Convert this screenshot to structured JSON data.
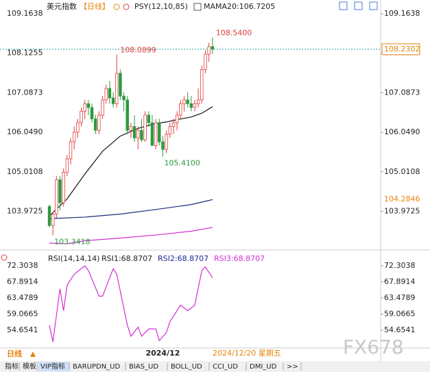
{
  "chart_data": [
    {
      "type": "candlestick",
      "title": "美元指数",
      "period": "【日线】",
      "indicator": "PSY(12,10,85)",
      "ma_label": "MAMA20:106.7205",
      "open": [
        104.1,
        103.6,
        103.9,
        104.8,
        104.2,
        105.0,
        105.35,
        105.8,
        106.05,
        106.3,
        106.6,
        106.8,
        106.7,
        106.4,
        106.1,
        106.5,
        106.9,
        107.2,
        106.95,
        106.8,
        107.6,
        107.0,
        106.9,
        106.1,
        106.2,
        105.9,
        106.1,
        105.85,
        106.5,
        106.3,
        105.7,
        106.3,
        105.8,
        105.6,
        106.0,
        106.2,
        106.3,
        106.5,
        106.8,
        106.9,
        106.8,
        106.7,
        106.8,
        106.9,
        107.7,
        108.1,
        108.3
      ],
      "high": [
        104.15,
        103.95,
        104.9,
        104.9,
        105.1,
        105.45,
        105.9,
        106.2,
        106.4,
        106.7,
        106.9,
        106.9,
        106.8,
        106.5,
        106.6,
        107.0,
        107.3,
        107.4,
        107.1,
        108.0899,
        107.7,
        107.1,
        107.0,
        106.3,
        106.5,
        106.2,
        106.4,
        106.6,
        106.6,
        106.5,
        106.4,
        106.4,
        105.95,
        106.1,
        106.3,
        106.4,
        106.6,
        106.9,
        107.0,
        107.1,
        107.0,
        106.9,
        107.2,
        107.8,
        108.2,
        108.4,
        108.54
      ],
      "low": [
        103.55,
        103.3418,
        103.8,
        104.0,
        104.1,
        104.9,
        105.2,
        105.6,
        105.9,
        106.2,
        106.4,
        106.5,
        106.3,
        106.0,
        106.0,
        106.4,
        106.8,
        106.8,
        106.7,
        106.7,
        106.9,
        106.6,
        106.0,
        105.9,
        105.8,
        105.6,
        105.8,
        105.8,
        106.2,
        105.7,
        105.6,
        105.7,
        105.41,
        105.5,
        105.9,
        106.0,
        106.1,
        106.4,
        106.6,
        106.7,
        106.6,
        106.6,
        106.7,
        106.8,
        107.6,
        107.9,
        108.1
      ],
      "close": [
        103.6,
        103.9,
        104.8,
        104.2,
        105.0,
        105.35,
        105.8,
        106.05,
        106.3,
        106.6,
        106.8,
        106.7,
        106.4,
        106.1,
        106.5,
        106.9,
        107.2,
        106.95,
        106.8,
        107.6,
        107.0,
        106.9,
        106.1,
        106.2,
        105.9,
        106.1,
        105.85,
        106.5,
        106.3,
        105.7,
        106.3,
        105.8,
        105.6,
        106.0,
        106.2,
        106.3,
        106.5,
        106.8,
        106.9,
        106.8,
        106.7,
        106.8,
        106.9,
        107.7,
        108.1,
        108.3,
        108.23
      ],
      "up_color": "#e03c3c",
      "down_color": "#2a9a3c",
      "lines": [
        {
          "color": "#111111",
          "x": [
            0,
            5,
            10,
            15,
            20,
            25,
            30,
            33,
            36,
            40,
            43,
            46
          ],
          "values": [
            103.85,
            104.3,
            104.95,
            105.55,
            105.95,
            106.15,
            106.28,
            106.32,
            106.38,
            106.45,
            106.55,
            106.72
          ]
        },
        {
          "color": "#1c2a7a",
          "x": [
            0,
            10,
            20,
            30,
            40,
            46
          ],
          "values": [
            103.78,
            103.82,
            103.9,
            104.02,
            104.15,
            104.28
          ]
        },
        {
          "color": "#d12fd1",
          "x": [
            0,
            5,
            10,
            20,
            30,
            40,
            46
          ],
          "values": [
            103.14,
            103.12,
            103.2,
            103.27,
            103.35,
            103.45,
            103.55
          ]
        }
      ],
      "highlow_labels": [
        {
          "value": 108.54,
          "label": "108.5400"
        },
        {
          "value": 108.0899,
          "label": "108.0899"
        },
        {
          "value": 105.41,
          "label": "105.4100"
        },
        {
          "value": 103.3418,
          "label": "103.3418"
        }
      ],
      "last_price": {
        "value": 108.2302,
        "label": "108.2302"
      },
      "ma_value_label": {
        "value": 104.2846,
        "label": "104.2846"
      },
      "ylim": [
        103.045,
        109.38
      ],
      "yticks": [
        109.1638,
        108.1255,
        107.0873,
        {
          "value": 106.049,
          "label": "106.0490"
        },
        105.0108,
        103.9725
      ]
    },
    {
      "type": "line",
      "title": "RSI(14,14,14)",
      "legend": [
        "RSI1:68.8707",
        "RSI2:68.8707",
        "RSI3:68.8707"
      ],
      "legend_colors": [
        "#222222",
        "#1c2a9a",
        "#d12fd1"
      ],
      "color": "#d12fd1",
      "x": [
        0,
        1,
        3,
        4,
        5,
        7,
        10,
        11,
        14,
        15,
        18,
        19,
        22,
        23,
        25,
        26,
        28,
        30,
        31,
        33,
        34,
        37,
        39,
        41,
        43,
        44,
        46
      ],
      "values": [
        56,
        51.5,
        66,
        60,
        67,
        70,
        72.3,
        71,
        64,
        64,
        71.5,
        70,
        56,
        53,
        55.5,
        53,
        55,
        55,
        51.8,
        54,
        57,
        61.5,
        60,
        61.5,
        71,
        72,
        69
      ],
      "ylim": [
        49.77,
        76.06
      ],
      "yticks": [
        72.3038,
        67.8914,
        63.4789,
        59.0665,
        54.6541
      ],
      "xticks": [
        {
          "value": 32,
          "label": "2024/12"
        }
      ],
      "cursor_date": "2024/12/20 星期五",
      "bottom_period": "日线"
    }
  ],
  "tabs": [
    "指标",
    "模板",
    "VIP指标",
    "BARUPDN_UD",
    "BIAS_UD",
    "BOLL_UD",
    "CCI_UD",
    "DMI_UD",
    ">>"
  ],
  "watermark": "FX678"
}
